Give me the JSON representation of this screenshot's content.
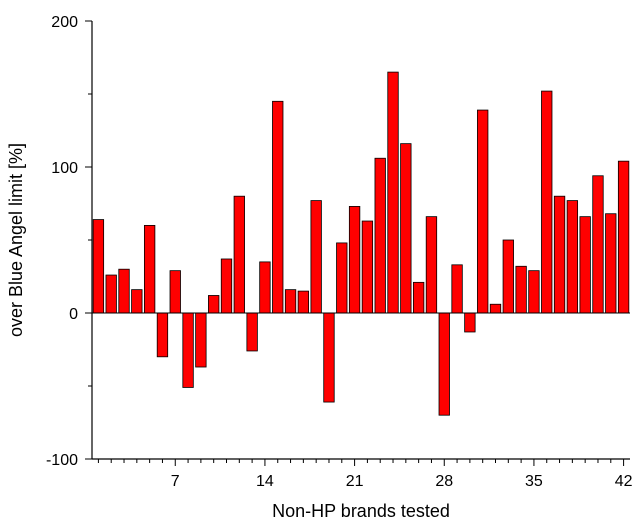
{
  "chart_data": {
    "type": "bar",
    "title": "",
    "xlabel": "Non-HP brands tested",
    "ylabel": "over Blue Angel limit [%]",
    "ylim": [
      -100,
      200
    ],
    "xlim": [
      0.5,
      42.5
    ],
    "grid": false,
    "legend": "none",
    "bar_color": "#ff0000",
    "bar_edge_color": "#000000",
    "x": [
      1,
      2,
      3,
      4,
      5,
      6,
      7,
      8,
      9,
      10,
      11,
      12,
      13,
      14,
      15,
      16,
      17,
      18,
      19,
      20,
      21,
      22,
      23,
      24,
      25,
      26,
      27,
      28,
      29,
      30,
      31,
      32,
      33,
      34,
      35,
      36,
      37,
      38,
      39,
      40,
      41,
      42
    ],
    "values": [
      64,
      26,
      30,
      16,
      60,
      -30,
      29,
      -51,
      -37,
      12,
      37,
      80,
      -26,
      35,
      145,
      16,
      15,
      77,
      -61,
      48,
      73,
      63,
      106,
      165,
      116,
      21,
      66,
      -70,
      33,
      -13,
      139,
      6,
      50,
      32,
      29,
      152,
      80,
      77,
      66,
      94,
      68,
      104
    ],
    "x_ticks": [
      {
        "value": 7,
        "label": "7"
      },
      {
        "value": 14,
        "label": "14"
      },
      {
        "value": 21,
        "label": "21"
      },
      {
        "value": 28,
        "label": "28"
      },
      {
        "value": 35,
        "label": "35"
      },
      {
        "value": 42,
        "label": "42"
      }
    ],
    "y_ticks": [
      {
        "value": -100,
        "label": "-100"
      },
      {
        "value": 0,
        "label": "0"
      },
      {
        "value": 100,
        "label": "100"
      },
      {
        "value": 200,
        "label": "200"
      }
    ],
    "y_minor_ticks": [
      -50,
      50,
      150
    ]
  }
}
